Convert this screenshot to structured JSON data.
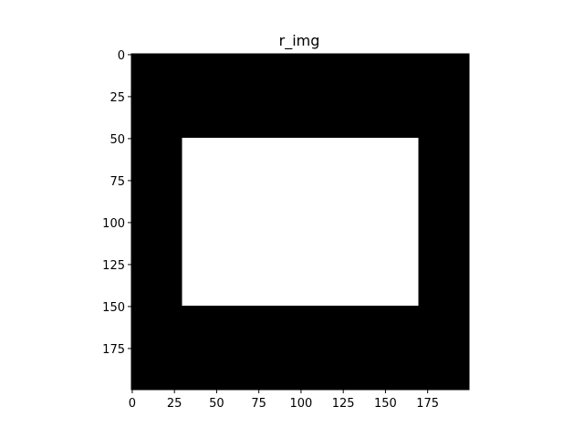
{
  "chart_data": {
    "type": "heatmap",
    "title": "r_img",
    "colormap": "gray",
    "colors": {
      "background": "#000000",
      "foreground": "#ffffff"
    },
    "image_size": {
      "rows": 200,
      "cols": 200
    },
    "regions": [
      {
        "name": "rectangle",
        "value": 1,
        "row_range": [
          50,
          150
        ],
        "col_range": [
          30,
          170
        ]
      }
    ],
    "xlim": [
      -0.5,
      199.5
    ],
    "ylim": [
      199.5,
      -0.5
    ],
    "x_ticks": [
      0,
      25,
      50,
      75,
      100,
      125,
      150,
      175
    ],
    "y_ticks": [
      0,
      25,
      50,
      75,
      100,
      125,
      150,
      175
    ],
    "xlabel": "",
    "ylabel": "",
    "grid": false
  }
}
